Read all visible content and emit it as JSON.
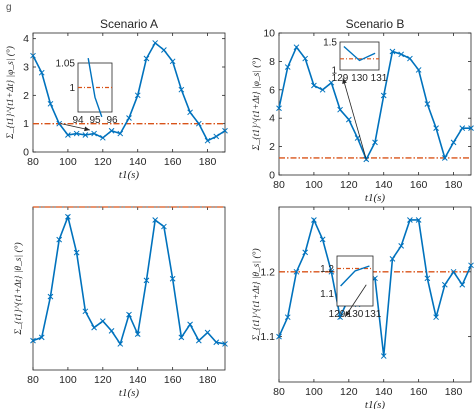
{
  "figure": {
    "caption_fragment": "g"
  },
  "chart_data": [
    {
      "id": "A1",
      "type": "line",
      "title": "Scenario A",
      "xlabel": "t1(s)",
      "ylabel": "Σ_{t1}^{t1+Δt} |φ_s| (°)",
      "xlim": [
        80,
        190
      ],
      "ylim": [
        0,
        4.2
      ],
      "xticks": [
        "80",
        "100",
        "120",
        "140",
        "160",
        "180"
      ],
      "xtick_values": [
        80,
        100,
        120,
        140,
        160,
        180
      ],
      "yticks": [
        "0",
        "1",
        "2",
        "3",
        "4"
      ],
      "ytick_values": [
        0,
        1,
        2,
        3,
        4
      ],
      "threshold": 1.0,
      "series": [
        {
          "color": "#0072BD",
          "x": [
            80,
            85,
            90,
            95,
            100,
            105,
            110,
            115,
            120,
            125,
            130,
            135,
            140,
            145,
            150,
            155,
            160,
            165,
            170,
            175,
            180,
            185,
            190
          ],
          "y": [
            3.4,
            2.8,
            1.7,
            1.0,
            0.6,
            0.65,
            0.6,
            0.65,
            0.5,
            0.75,
            0.65,
            1.2,
            2.0,
            3.3,
            3.85,
            3.6,
            3.2,
            2.2,
            1.4,
            1.0,
            0.4,
            0.55,
            0.75
          ]
        }
      ],
      "inset": {
        "xlim": [
          94,
          96
        ],
        "ylim": [
          0.95,
          1.05
        ],
        "xticks": [
          "94",
          "95",
          "96"
        ],
        "yticks": [
          "1",
          "1.05"
        ],
        "points": [
          [
            94.6,
            1.06
          ],
          [
            95.0,
            0.98
          ],
          [
            95.4,
            0.94
          ]
        ]
      }
    },
    {
      "id": "B1",
      "type": "line",
      "title": "Scenario B",
      "xlabel": "t1(s)",
      "ylabel": "Σ_{t1}^{t1+Δt} |φ_s| (°)",
      "xlim": [
        80,
        190
      ],
      "ylim": [
        0,
        10
      ],
      "xticks": [
        "80",
        "100",
        "120",
        "140",
        "160",
        "180"
      ],
      "xtick_values": [
        80,
        100,
        120,
        140,
        160,
        180
      ],
      "yticks": [
        "0",
        "2",
        "4",
        "6",
        "8",
        "10"
      ],
      "ytick_values": [
        0,
        2,
        4,
        6,
        8,
        10
      ],
      "threshold": 1.2,
      "series": [
        {
          "color": "#0072BD",
          "x": [
            80,
            85,
            90,
            95,
            100,
            105,
            110,
            115,
            120,
            125,
            130,
            135,
            140,
            145,
            150,
            155,
            160,
            165,
            170,
            175,
            180,
            185,
            190
          ],
          "y": [
            4.7,
            7.6,
            9.0,
            8.2,
            6.3,
            6.0,
            6.5,
            4.6,
            3.9,
            2.6,
            1.1,
            2.3,
            5.6,
            8.7,
            8.5,
            8.2,
            7.4,
            5.0,
            3.3,
            1.2,
            2.3,
            3.3,
            3.3
          ]
        }
      ],
      "inset": {
        "xlim": [
          129,
          131
        ],
        "ylim": [
          1.0,
          1.5
        ],
        "xticks": [
          "129",
          "130",
          "131"
        ],
        "yticks": [
          "1",
          "1.5"
        ],
        "points": [
          [
            129.2,
            1.42
          ],
          [
            130.0,
            1.17
          ],
          [
            130.8,
            1.3
          ]
        ]
      }
    },
    {
      "id": "A2",
      "type": "line",
      "title": "",
      "xlabel": "t1(s)",
      "ylabel": "Σ_{t1}^{t1+Δt} |θ_s| (°)",
      "xlim": [
        80,
        190
      ],
      "ylim": [
        0,
        1.0
      ],
      "xticks": [
        "80",
        "100",
        "120",
        "140",
        "160",
        "180"
      ],
      "xtick_values": [
        80,
        100,
        120,
        140,
        160,
        180
      ],
      "yticks": [],
      "ytick_values": [],
      "threshold": 1.0,
      "series": [
        {
          "color": "#0072BD",
          "x": [
            80,
            85,
            90,
            95,
            100,
            105,
            110,
            115,
            120,
            125,
            130,
            135,
            140,
            145,
            150,
            155,
            160,
            165,
            170,
            175,
            180,
            185,
            190
          ],
          "y": [
            0.18,
            0.2,
            0.45,
            0.8,
            0.94,
            0.72,
            0.36,
            0.26,
            0.3,
            0.24,
            0.16,
            0.34,
            0.22,
            0.55,
            0.92,
            0.88,
            0.56,
            0.2,
            0.28,
            0.18,
            0.23,
            0.17,
            0.16
          ]
        }
      ]
    },
    {
      "id": "B2",
      "type": "line",
      "title": "",
      "xlabel": "t1(s)",
      "ylabel": "Σ_{t1}^{t1+Δt} |θ_s| (°)",
      "xlim": [
        80,
        190
      ],
      "ylim": [
        1.03,
        1.3
      ],
      "xticks": [
        "80",
        "100",
        "120",
        "140",
        "160",
        "180"
      ],
      "xtick_values": [
        80,
        100,
        120,
        140,
        160,
        180
      ],
      "yticks": [
        "1.1",
        "1.2"
      ],
      "ytick_values": [
        1.1,
        1.2
      ],
      "threshold": 1.2,
      "series": [
        {
          "color": "#0072BD",
          "x": [
            80,
            85,
            90,
            95,
            100,
            105,
            110,
            115,
            120,
            125,
            130,
            135,
            140,
            145,
            150,
            155,
            160,
            165,
            170,
            175,
            180,
            185,
            190
          ],
          "y": [
            1.1,
            1.13,
            1.2,
            1.23,
            1.28,
            1.25,
            1.2,
            1.13,
            1.16,
            1.15,
            1.18,
            1.19,
            1.07,
            1.22,
            1.24,
            1.28,
            1.28,
            1.19,
            1.13,
            1.18,
            1.2,
            1.18,
            1.21
          ]
        }
      ],
      "inset": {
        "xlim": [
          129,
          131
        ],
        "ylim": [
          1.05,
          1.25
        ],
        "xticks": [
          "129",
          "130",
          "131"
        ],
        "yticks": [
          "1.1",
          "1.2"
        ],
        "points": [
          [
            129.2,
            1.13
          ],
          [
            130.0,
            1.19
          ],
          [
            130.8,
            1.21
          ]
        ]
      }
    }
  ]
}
